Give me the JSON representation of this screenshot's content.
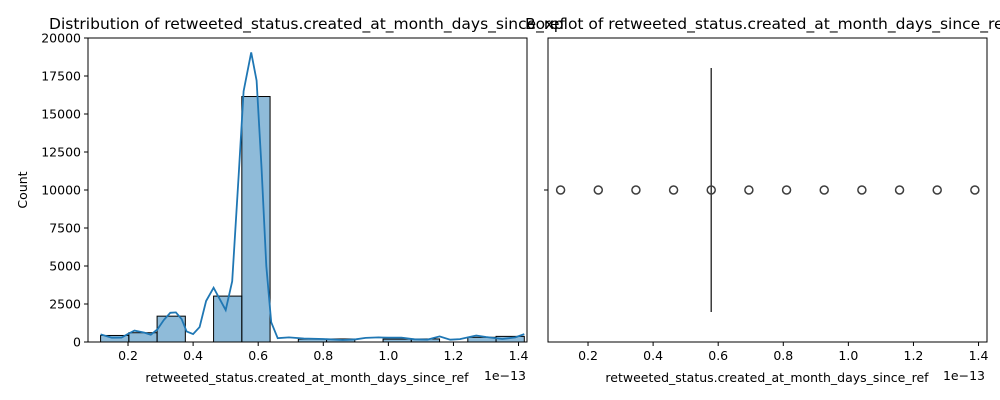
{
  "chart_data": [
    {
      "type": "histogram",
      "title": "Distribution of retweeted_status.created_at_month_days_since_ref",
      "xlabel": "retweeted_status.created_at_month_days_since_ref",
      "ylabel": "Count",
      "x_offset_text": "1e−13",
      "x_exponent": -13,
      "xlim": [
        0.077,
        1.426
      ],
      "ylim": [
        0,
        20000
      ],
      "x_ticks": [
        0.2,
        0.4,
        0.6,
        0.8,
        1.0,
        1.2,
        1.4
      ],
      "x_tick_labels": [
        "0.2",
        "0.4",
        "0.6",
        "0.8",
        "1.0",
        "1.2",
        "1.4"
      ],
      "y_ticks": [
        0,
        2500,
        5000,
        7500,
        10000,
        12500,
        15000,
        17500,
        20000
      ],
      "y_tick_labels": [
        "0",
        "2500",
        "5000",
        "7500",
        "10000",
        "12500",
        "15000",
        "17500",
        "20000"
      ],
      "bin_edges": [
        0.1157,
        0.2025,
        0.2893,
        0.3761,
        0.4629,
        0.5497,
        0.6365,
        0.7233,
        0.8101,
        0.8969,
        0.9837,
        1.0705,
        1.1573,
        1.2441,
        1.3309,
        1.4177
      ],
      "counts": [
        430,
        610,
        1700,
        0,
        3020,
        16150,
        0,
        190,
        200,
        0,
        190,
        200,
        0,
        310,
        370,
        450
      ],
      "bar_color": "#1f77b4",
      "kde_color": "#1f77b4",
      "kde": {
        "x": [
          0.1157,
          0.15,
          0.18,
          0.2025,
          0.22,
          0.25,
          0.27,
          0.29,
          0.31,
          0.33,
          0.3472,
          0.365,
          0.38,
          0.4,
          0.42,
          0.44,
          0.4629,
          0.48,
          0.5,
          0.52,
          0.54,
          0.555,
          0.5786,
          0.595,
          0.61,
          0.625,
          0.64,
          0.66,
          0.6943,
          0.74,
          0.8,
          0.86,
          0.9,
          0.93,
          0.97,
          1.0,
          1.04,
          1.08,
          1.12,
          1.1573,
          1.19,
          1.22,
          1.27,
          1.3,
          1.35,
          1.39,
          1.4177
        ],
        "y": [
          500,
          280,
          290,
          560,
          750,
          620,
          480,
          820,
          1450,
          1920,
          1950,
          1500,
          700,
          520,
          980,
          2700,
          3570,
          2900,
          2100,
          4000,
          11000,
          16500,
          19050,
          17200,
          11500,
          5000,
          1300,
          250,
          300,
          230,
          200,
          130,
          180,
          270,
          300,
          280,
          290,
          180,
          160,
          370,
          150,
          190,
          430,
          330,
          200,
          300,
          520
        ]
      }
    },
    {
      "type": "boxplot",
      "title": "Boxplot of retweeted_status.created_at_month_days_since_ref",
      "xlabel": "retweeted_status.created_at_month_days_since_ref",
      "x_offset_text": "1e−13",
      "x_exponent": -13,
      "xlim": [
        0.077,
        1.426
      ],
      "x_ticks": [
        0.2,
        0.4,
        0.6,
        0.8,
        1.0,
        1.2,
        1.4
      ],
      "x_tick_labels": [
        "0.2",
        "0.4",
        "0.6",
        "0.8",
        "1.0",
        "1.2",
        "1.4"
      ],
      "median": 0.5786,
      "q1": 0.5786,
      "q3": 0.5786,
      "whisker_low": 0.5786,
      "whisker_high": 0.5786,
      "outliers": [
        0.1157,
        0.2315,
        0.3472,
        0.4629,
        0.5786,
        0.6943,
        0.8101,
        0.9258,
        1.0415,
        1.1573,
        1.273,
        1.3887
      ]
    }
  ]
}
